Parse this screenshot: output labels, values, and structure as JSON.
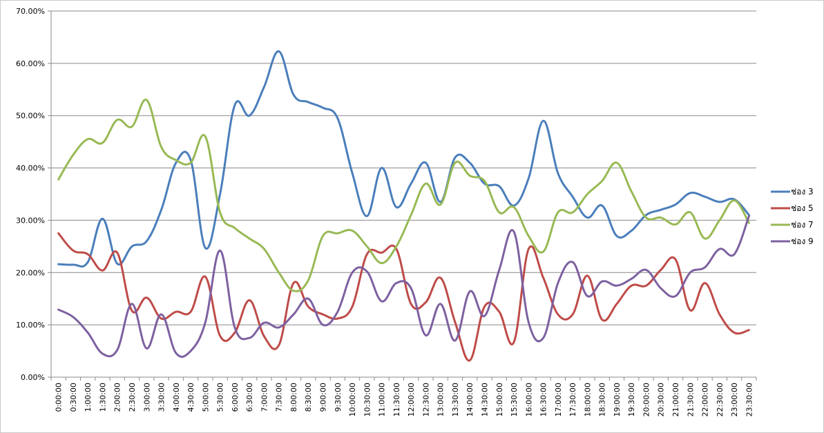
{
  "chart_data": {
    "type": "line",
    "title": "",
    "xlabel": "",
    "ylabel": "",
    "ylim": [
      0,
      70
    ],
    "y_ticks": [
      "0.00%",
      "10.00%",
      "20.00%",
      "30.00%",
      "40.00%",
      "50.00%",
      "60.00%",
      "70.00%"
    ],
    "grid": "horizontal",
    "legend_position": "right",
    "smooth": true,
    "categories": [
      "0:00:00",
      "0:30:00",
      "1:00:00",
      "1:30:00",
      "2:00:00",
      "2:30:00",
      "3:00:00",
      "3:30:00",
      "4:00:00",
      "4:30:00",
      "5:00:00",
      "5:30:00",
      "6:00:00",
      "6:30:00",
      "7:00:00",
      "7:30:00",
      "8:00:00",
      "8:30:00",
      "9:00:00",
      "9:30:00",
      "10:00:00",
      "10:30:00",
      "11:00:00",
      "11:30:00",
      "12:00:00",
      "12:30:00",
      "13:00:00",
      "13:30:00",
      "14:00:00",
      "14:30:00",
      "15:00:00",
      "15:30:00",
      "16:00:00",
      "16:30:00",
      "17:00:00",
      "17:30:00",
      "18:00:00",
      "18:30:00",
      "19:00:00",
      "19:30:00",
      "20:00:00",
      "20:30:00",
      "21:00:00",
      "21:30:00",
      "22:00:00",
      "22:30:00",
      "23:00:00",
      "23:30:00"
    ],
    "series": [
      {
        "name": "ช่อง 3",
        "color": "#4a7ebb",
        "values": [
          21.6,
          21.5,
          22.0,
          30.3,
          21.7,
          25.0,
          26.0,
          32.0,
          41.0,
          41.5,
          24.7,
          35.0,
          52.0,
          50.0,
          55.5,
          62.3,
          54.0,
          52.6,
          51.5,
          49.5,
          39.0,
          30.8,
          40.0,
          32.5,
          37.0,
          41.0,
          33.5,
          42.0,
          41.0,
          37.0,
          36.5,
          32.8,
          38.0,
          49.0,
          39.0,
          34.5,
          30.5,
          32.8,
          27.0,
          28.0,
          31.0,
          32.0,
          33.0,
          35.2,
          34.5,
          33.5,
          34.0,
          31.0
        ]
      },
      {
        "name": "ช่อง 5",
        "color": "#be4b48",
        "values": [
          27.5,
          24.2,
          23.5,
          20.4,
          23.8,
          12.7,
          15.2,
          11.2,
          12.5,
          12.5,
          19.2,
          7.9,
          8.5,
          14.7,
          7.8,
          6.1,
          18.0,
          13.5,
          12.0,
          11.2,
          13.5,
          23.5,
          23.8,
          24.5,
          14.0,
          14.3,
          19.0,
          10.5,
          3.2,
          13.5,
          12.5,
          6.7,
          24.5,
          19.0,
          12.0,
          12.0,
          19.4,
          11.0,
          14.0,
          17.5,
          17.5,
          20.5,
          22.5,
          12.8,
          18.0,
          12.0,
          8.5,
          9.0
        ]
      },
      {
        "name": "ช่อง 7",
        "color": "#98b954",
        "values": [
          37.8,
          42.5,
          45.5,
          44.8,
          49.2,
          47.9,
          53.0,
          44.0,
          41.5,
          41.0,
          46.0,
          31.5,
          28.5,
          26.5,
          24.5,
          20.0,
          16.5,
          18.5,
          27.0,
          27.5,
          28.0,
          25.0,
          21.8,
          25.0,
          31.0,
          37.0,
          33.0,
          41.0,
          38.5,
          37.5,
          31.5,
          32.5,
          27.0,
          24.0,
          31.5,
          31.5,
          35.0,
          37.5,
          41.0,
          35.5,
          30.5,
          30.5,
          29.2,
          31.5,
          26.5,
          30.0,
          33.8,
          29.5
        ]
      },
      {
        "name": "ช่อง 9",
        "color": "#7d60a0",
        "values": [
          12.9,
          11.5,
          8.5,
          4.5,
          5.2,
          14.0,
          5.5,
          12.0,
          4.6,
          5.0,
          10.5,
          24.2,
          9.5,
          7.5,
          10.4,
          9.5,
          12.0,
          15.0,
          10.0,
          12.5,
          20.0,
          20.2,
          14.5,
          18.0,
          17.0,
          8.0,
          14.0,
          7.0,
          16.4,
          11.7,
          20.5,
          27.8,
          10.5,
          7.5,
          18.0,
          22.0,
          15.5,
          18.3,
          17.5,
          18.8,
          20.5,
          17.0,
          15.5,
          20.0,
          21.0,
          24.5,
          23.5,
          30.8
        ]
      }
    ]
  }
}
